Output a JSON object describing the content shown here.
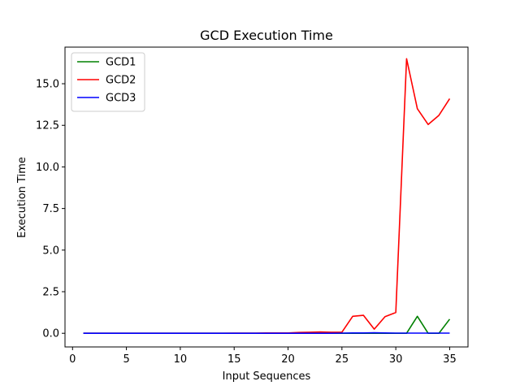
{
  "chart_data": {
    "type": "line",
    "title": "GCD Execution Time",
    "xlabel": "Input Sequences",
    "ylabel": "Execution Time",
    "xlim": [
      -0.7,
      36.7
    ],
    "ylim": [
      -0.82,
      17.2
    ],
    "xticks": [
      0,
      5,
      10,
      15,
      20,
      25,
      30,
      35
    ],
    "xtick_labels": [
      "0",
      "5",
      "10",
      "15",
      "20",
      "25",
      "30",
      "35"
    ],
    "yticks": [
      0,
      2.5,
      5,
      7.5,
      10,
      12.5,
      15
    ],
    "ytick_labels": [
      "0.0",
      "2.5",
      "5.0",
      "7.5",
      "10.0",
      "12.5",
      "15.0"
    ],
    "grid": false,
    "legend_position": "upper left",
    "x": [
      1,
      2,
      3,
      4,
      5,
      6,
      7,
      8,
      9,
      10,
      11,
      12,
      13,
      14,
      15,
      16,
      17,
      18,
      19,
      20,
      21,
      22,
      23,
      24,
      25,
      26,
      27,
      28,
      29,
      30,
      31,
      32,
      33,
      34,
      35
    ],
    "series": [
      {
        "name": "GCD1",
        "color": "#008000",
        "values": [
          0,
          0,
          0,
          0,
          0,
          0,
          0,
          0,
          0,
          0,
          0,
          0,
          0,
          0,
          0,
          0,
          0,
          0,
          0,
          0,
          0,
          0,
          0,
          0,
          0,
          0,
          0,
          0,
          0,
          0,
          0,
          1.02,
          0,
          0,
          0.85
        ]
      },
      {
        "name": "GCD2",
        "color": "#ff0000",
        "values": [
          0,
          0,
          0,
          0,
          0,
          0,
          0,
          0,
          0,
          0,
          0,
          0,
          0,
          0,
          0.01,
          0.01,
          0.01,
          0.02,
          0.02,
          0.02,
          0.05,
          0.06,
          0.08,
          0.06,
          0.07,
          1.02,
          1.08,
          0.25,
          1.0,
          1.25,
          16.5,
          13.5,
          12.55,
          13.1,
          14.1
        ]
      },
      {
        "name": "GCD3",
        "color": "#0000ff",
        "values": [
          0,
          0,
          0,
          0,
          0,
          0,
          0,
          0,
          0,
          0,
          0,
          0,
          0,
          0,
          0,
          0,
          0,
          0,
          0,
          0,
          0,
          0,
          0,
          0,
          0.01,
          0.02,
          0.02,
          0.03,
          0.02,
          0.01,
          0.01,
          0.01,
          0.01,
          0.01,
          0.01
        ]
      }
    ]
  }
}
